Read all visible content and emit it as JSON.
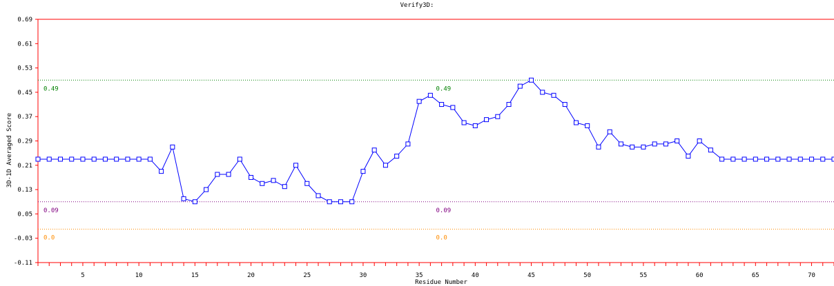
{
  "chart_data": {
    "type": "line",
    "title": "Verify3D:",
    "xlabel": "Residue Number",
    "ylabel": "3D-1D Averaged Score",
    "xlim": [
      1,
      72
    ],
    "ylim": [
      -0.11,
      0.69
    ],
    "yticks": [
      "0.69",
      "0.61",
      "0.53",
      "0.45",
      "0.37",
      "0.29",
      "0.21",
      "0.13",
      "0.05",
      "-0.03",
      "-0.11"
    ],
    "xticks": [
      "5",
      "10",
      "15",
      "20",
      "25",
      "30",
      "35",
      "40",
      "45",
      "50",
      "55",
      "60",
      "65",
      "70"
    ],
    "grid": false,
    "x": [
      1,
      2,
      3,
      4,
      5,
      6,
      7,
      8,
      9,
      10,
      11,
      12,
      13,
      14,
      15,
      16,
      17,
      18,
      19,
      20,
      21,
      22,
      23,
      24,
      25,
      26,
      27,
      28,
      29,
      30,
      31,
      32,
      33,
      34,
      35,
      36,
      37,
      38,
      39,
      40,
      41,
      42,
      43,
      44,
      45,
      46,
      47,
      48,
      49,
      50,
      51,
      52,
      53,
      54,
      55,
      56,
      57,
      58,
      59,
      60,
      61,
      62,
      63,
      64,
      65,
      66,
      67,
      68,
      69,
      70,
      71,
      72
    ],
    "series": [
      {
        "name": "",
        "color": "#0000ff",
        "marker": "square",
        "values": [
          0.23,
          0.23,
          0.23,
          0.23,
          0.23,
          0.23,
          0.23,
          0.23,
          0.23,
          0.23,
          0.23,
          0.19,
          0.27,
          0.1,
          0.09,
          0.13,
          0.18,
          0.18,
          0.23,
          0.17,
          0.15,
          0.16,
          0.14,
          0.21,
          0.15,
          0.11,
          0.09,
          0.09,
          0.09,
          0.19,
          0.26,
          0.21,
          0.24,
          0.28,
          0.42,
          0.44,
          0.41,
          0.4,
          0.35,
          0.34,
          0.36,
          0.37,
          0.41,
          0.47,
          0.49,
          0.45,
          0.44,
          0.41,
          0.35,
          0.34,
          0.27,
          0.32,
          0.28,
          0.27,
          0.27,
          0.28,
          0.28,
          0.29,
          0.24,
          0.29,
          0.26,
          0.23,
          0.23,
          0.23,
          0.23,
          0.23,
          0.23,
          0.23,
          0.23,
          0.23,
          0.23,
          0.23
        ]
      }
    ],
    "reference_lines": [
      {
        "value": 0.49,
        "label": "0.49",
        "color": "#008000"
      },
      {
        "value": 0.09,
        "label": "0.09",
        "color": "#800080"
      },
      {
        "value": 0.0,
        "label": "0.0",
        "color": "#ff8c00"
      }
    ],
    "frame_color": "#ff0000"
  }
}
